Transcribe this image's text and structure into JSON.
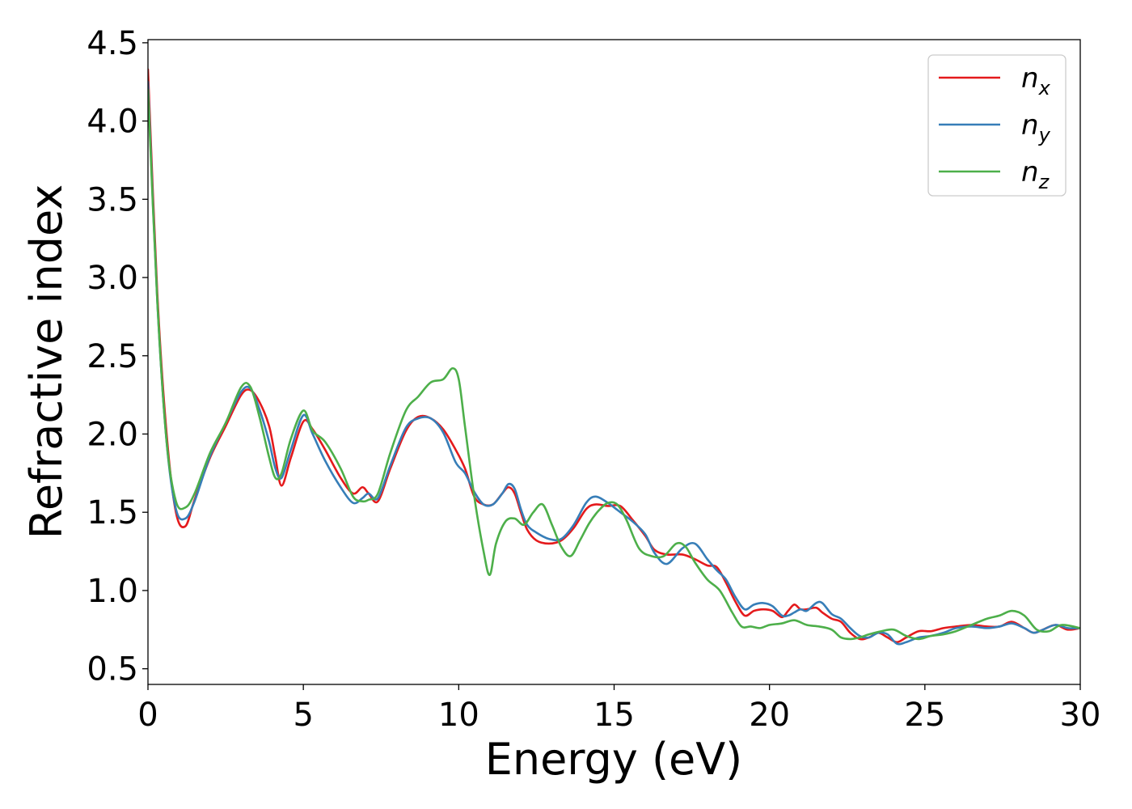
{
  "chart_data": {
    "type": "line",
    "title": "",
    "xlabel": "Energy (eV)",
    "ylabel": "Refractive index",
    "xlim": [
      0,
      30
    ],
    "ylim": [
      0.4,
      4.52
    ],
    "xticks": [
      0,
      5,
      10,
      15,
      20,
      25,
      30
    ],
    "yticks": [
      0.5,
      1.0,
      1.5,
      2.0,
      2.5,
      3.0,
      3.5,
      4.0,
      4.5
    ],
    "xtick_labels": [
      "0",
      "5",
      "10",
      "15",
      "20",
      "25",
      "30"
    ],
    "ytick_labels": [
      "0.5",
      "1.0",
      "1.5",
      "2.0",
      "2.5",
      "3.0",
      "3.5",
      "4.0",
      "4.5"
    ],
    "grid": false,
    "legend": {
      "position": "top-right"
    },
    "series": [
      {
        "name": "n_x",
        "label_base": "n",
        "label_sub": "x",
        "color": "#e41a1c",
        "x": [
          0,
          0.3,
          0.6,
          0.9,
          1.2,
          1.5,
          2.0,
          2.5,
          3.0,
          3.3,
          3.6,
          3.9,
          4.1,
          4.3,
          4.6,
          5.0,
          5.3,
          5.7,
          6.2,
          6.6,
          6.9,
          7.1,
          7.4,
          7.8,
          8.3,
          8.7,
          9.1,
          9.5,
          9.9,
          10.2,
          10.5,
          10.8,
          11.1,
          11.4,
          11.6,
          11.8,
          12.0,
          12.2,
          12.5,
          12.9,
          13.3,
          13.7,
          14.1,
          14.4,
          14.8,
          15.2,
          15.6,
          16.0,
          16.3,
          16.7,
          17.2,
          17.6,
          18.0,
          18.3,
          18.6,
          18.9,
          19.2,
          19.5,
          19.8,
          20.1,
          20.4,
          20.6,
          20.8,
          21.0,
          21.2,
          21.5,
          21.7,
          22.0,
          22.3,
          22.6,
          22.9,
          23.2,
          23.5,
          23.8,
          24.1,
          24.4,
          24.8,
          25.2,
          25.6,
          26.0,
          26.5,
          27.0,
          27.4,
          27.8,
          28.2,
          28.5,
          28.8,
          29.2,
          29.6,
          30.0
        ],
        "y": [
          4.33,
          2.9,
          2.0,
          1.5,
          1.41,
          1.58,
          1.85,
          2.05,
          2.25,
          2.28,
          2.2,
          2.05,
          1.85,
          1.67,
          1.85,
          2.08,
          2.03,
          1.9,
          1.72,
          1.62,
          1.66,
          1.62,
          1.57,
          1.78,
          2.02,
          2.11,
          2.1,
          2.03,
          1.9,
          1.78,
          1.6,
          1.55,
          1.55,
          1.62,
          1.66,
          1.62,
          1.5,
          1.39,
          1.32,
          1.3,
          1.32,
          1.4,
          1.52,
          1.55,
          1.54,
          1.54,
          1.45,
          1.35,
          1.26,
          1.23,
          1.23,
          1.2,
          1.16,
          1.15,
          1.05,
          0.93,
          0.84,
          0.87,
          0.88,
          0.87,
          0.83,
          0.87,
          0.91,
          0.88,
          0.88,
          0.89,
          0.86,
          0.82,
          0.8,
          0.73,
          0.69,
          0.7,
          0.73,
          0.7,
          0.67,
          0.7,
          0.74,
          0.74,
          0.76,
          0.77,
          0.78,
          0.77,
          0.77,
          0.8,
          0.76,
          0.73,
          0.75,
          0.78,
          0.75,
          0.76
        ]
      },
      {
        "name": "n_y",
        "label_base": "n",
        "label_sub": "y",
        "color": "#377eb8",
        "x": [
          0,
          0.3,
          0.6,
          0.9,
          1.2,
          1.5,
          2.0,
          2.5,
          3.0,
          3.3,
          3.6,
          3.9,
          4.1,
          4.3,
          4.6,
          5.0,
          5.3,
          5.7,
          6.2,
          6.6,
          6.9,
          7.1,
          7.4,
          7.8,
          8.3,
          8.7,
          9.1,
          9.5,
          9.9,
          10.2,
          10.5,
          10.8,
          11.1,
          11.4,
          11.6,
          11.8,
          12.0,
          12.2,
          12.5,
          12.9,
          13.3,
          13.7,
          14.1,
          14.4,
          14.8,
          15.2,
          15.6,
          16.0,
          16.3,
          16.7,
          17.2,
          17.6,
          18.0,
          18.3,
          18.6,
          18.9,
          19.2,
          19.5,
          19.8,
          20.1,
          20.4,
          20.6,
          20.8,
          21.0,
          21.2,
          21.5,
          21.7,
          22.0,
          22.3,
          22.6,
          22.9,
          23.2,
          23.5,
          23.8,
          24.1,
          24.4,
          24.8,
          25.2,
          25.6,
          26.0,
          26.5,
          27.0,
          27.4,
          27.8,
          28.2,
          28.5,
          28.8,
          29.2,
          29.6,
          30.0
        ],
        "y": [
          4.25,
          2.85,
          1.95,
          1.52,
          1.46,
          1.57,
          1.86,
          2.07,
          2.27,
          2.29,
          2.15,
          1.95,
          1.78,
          1.72,
          1.9,
          2.12,
          2.0,
          1.83,
          1.66,
          1.56,
          1.59,
          1.62,
          1.59,
          1.8,
          2.04,
          2.1,
          2.1,
          2.01,
          1.82,
          1.75,
          1.63,
          1.55,
          1.55,
          1.62,
          1.68,
          1.65,
          1.52,
          1.42,
          1.37,
          1.33,
          1.33,
          1.42,
          1.56,
          1.6,
          1.56,
          1.5,
          1.44,
          1.36,
          1.24,
          1.17,
          1.27,
          1.3,
          1.2,
          1.13,
          1.07,
          0.96,
          0.88,
          0.91,
          0.92,
          0.9,
          0.84,
          0.84,
          0.86,
          0.88,
          0.87,
          0.92,
          0.92,
          0.85,
          0.82,
          0.76,
          0.71,
          0.7,
          0.73,
          0.72,
          0.66,
          0.67,
          0.7,
          0.71,
          0.73,
          0.76,
          0.77,
          0.76,
          0.77,
          0.79,
          0.76,
          0.73,
          0.75,
          0.78,
          0.76,
          0.76
        ]
      },
      {
        "name": "n_z",
        "label_base": "n",
        "label_sub": "z",
        "color": "#4daf4a",
        "x": [
          0,
          0.3,
          0.6,
          0.9,
          1.2,
          1.5,
          2.0,
          2.5,
          3.0,
          3.3,
          3.6,
          3.9,
          4.1,
          4.3,
          4.6,
          5.0,
          5.3,
          5.7,
          6.2,
          6.6,
          6.9,
          7.1,
          7.4,
          7.8,
          8.3,
          8.7,
          9.1,
          9.5,
          9.8,
          10.0,
          10.2,
          10.5,
          10.8,
          11.0,
          11.2,
          11.5,
          11.8,
          12.1,
          12.4,
          12.7,
          13.0,
          13.3,
          13.6,
          13.9,
          14.2,
          14.5,
          14.8,
          15.1,
          15.4,
          15.8,
          16.2,
          16.6,
          17.0,
          17.3,
          17.6,
          18.0,
          18.4,
          18.8,
          19.1,
          19.4,
          19.7,
          20.0,
          20.4,
          20.8,
          21.2,
          21.6,
          22.0,
          22.3,
          22.6,
          22.9,
          23.2,
          23.6,
          24.0,
          24.4,
          24.8,
          25.2,
          25.6,
          26.0,
          26.5,
          27.0,
          27.4,
          27.8,
          28.2,
          28.6,
          29.0,
          29.4,
          30.0
        ],
        "y": [
          4.2,
          2.85,
          1.95,
          1.57,
          1.53,
          1.62,
          1.88,
          2.07,
          2.3,
          2.3,
          2.1,
          1.85,
          1.72,
          1.75,
          1.97,
          2.15,
          2.02,
          1.95,
          1.78,
          1.6,
          1.57,
          1.58,
          1.62,
          1.88,
          2.15,
          2.24,
          2.33,
          2.35,
          2.42,
          2.35,
          2.05,
          1.6,
          1.25,
          1.1,
          1.3,
          1.44,
          1.46,
          1.42,
          1.5,
          1.55,
          1.42,
          1.28,
          1.22,
          1.32,
          1.43,
          1.51,
          1.56,
          1.55,
          1.45,
          1.27,
          1.22,
          1.22,
          1.3,
          1.28,
          1.18,
          1.07,
          1.0,
          0.86,
          0.77,
          0.77,
          0.76,
          0.78,
          0.79,
          0.81,
          0.78,
          0.77,
          0.75,
          0.7,
          0.69,
          0.7,
          0.72,
          0.74,
          0.75,
          0.71,
          0.69,
          0.71,
          0.72,
          0.74,
          0.78,
          0.82,
          0.84,
          0.87,
          0.84,
          0.75,
          0.74,
          0.78,
          0.76
        ]
      }
    ]
  }
}
